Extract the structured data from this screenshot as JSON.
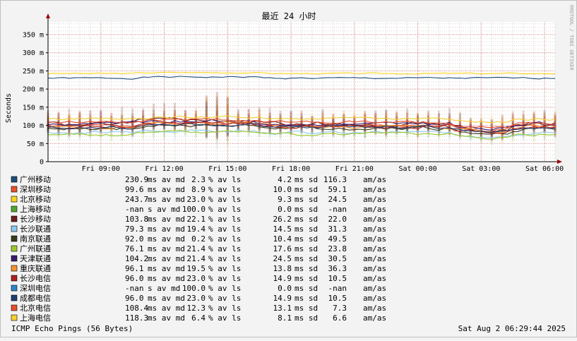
{
  "chart_data": {
    "type": "line",
    "title": "最近 24 小时",
    "ylabel": "Seconds",
    "watermark": "RRDTOOL / TOBI OETIKER",
    "footer_left": "ICMP Echo Pings (56 Bytes)",
    "footer_right": "Sat Aug  2 06:29:44 2025",
    "grid": true,
    "y_unit": "m",
    "ylim": [
      0,
      385
    ],
    "y_ticks": [
      {
        "value": 0,
        "label": "0"
      },
      {
        "value": 50,
        "label": "50 m"
      },
      {
        "value": 100,
        "label": "100 m"
      },
      {
        "value": 150,
        "label": "150 m"
      },
      {
        "value": 200,
        "label": "200 m"
      },
      {
        "value": 250,
        "label": "250 m"
      },
      {
        "value": 300,
        "label": "300 m"
      },
      {
        "value": 350,
        "label": "350 m"
      }
    ],
    "xlim": [
      "Fri 06:30",
      "Sat 06:30"
    ],
    "x_range_hours": [
      0,
      24
    ],
    "x_ticks": [
      {
        "hour": 2.5,
        "label": "Fri 09:00"
      },
      {
        "hour": 5.5,
        "label": "Fri 12:00"
      },
      {
        "hour": 8.5,
        "label": "Fri 15:00"
      },
      {
        "hour": 11.5,
        "label": "Fri 18:00"
      },
      {
        "hour": 14.5,
        "label": "Fri 21:00"
      },
      {
        "hour": 17.5,
        "label": "Sat 00:00"
      },
      {
        "hour": 20.5,
        "label": "Sat 03:00"
      },
      {
        "hour": 23.5,
        "label": "Sat 06:00"
      }
    ],
    "legend_placement": "bottom",
    "series": [
      {
        "name": "广州移动",
        "color": "#1f4e79",
        "avg": "230.9",
        "avg_unit": "ms",
        "loss": "2.3",
        "sd": "4.2",
        "sd_unit": "ms",
        "am": "116.3",
        "base": 230,
        "amp": 4,
        "seed": 1
      },
      {
        "name": "深圳移动",
        "color": "#e8522b",
        "avg": "99.6",
        "avg_unit": "ms",
        "loss": "8.9",
        "sd": "10.0",
        "sd_unit": "ms",
        "am": "59.1",
        "base": 100,
        "amp": 10,
        "seed": 2
      },
      {
        "name": "北京移动",
        "color": "#f7d51a",
        "avg": "243.7",
        "avg_unit": "ms",
        "loss": "23.0",
        "sd": "9.3",
        "sd_unit": "ms",
        "am": "24.5",
        "base": 243,
        "amp": 3,
        "seed": 3
      },
      {
        "name": "上海移动",
        "color": "#4ea72e",
        "avg": "-nan",
        "avg_unit": " s",
        "loss": "100.0",
        "sd": "0.0",
        "sd_unit": "ms",
        "am": "-nan"
      },
      {
        "name": "长沙移动",
        "color": "#6b1d1d",
        "avg": "103.8",
        "avg_unit": "ms",
        "loss": "22.1",
        "sd": "26.2",
        "sd_unit": "ms",
        "am": "22.0",
        "base": 104,
        "amp": 12,
        "seed": 5
      },
      {
        "name": "长沙联通",
        "color": "#8ccbf0",
        "avg": "79.3",
        "avg_unit": "ms",
        "loss": "19.4",
        "sd": "14.5",
        "sd_unit": "ms",
        "am": "31.3",
        "base": 80,
        "amp": 8,
        "seed": 6
      },
      {
        "name": "南京联通",
        "color": "#3b3b1f",
        "avg": "92.0",
        "avg_unit": "ms",
        "loss": "0.2",
        "sd": "10.4",
        "sd_unit": "ms",
        "am": "49.5",
        "base": 92,
        "amp": 9,
        "seed": 7
      },
      {
        "name": "广州联通",
        "color": "#9cc92b",
        "avg": "76.1",
        "avg_unit": "ms",
        "loss": "21.4",
        "sd": "17.6",
        "sd_unit": "ms",
        "am": "23.8",
        "base": 75,
        "amp": 8,
        "seed": 8
      },
      {
        "name": "天津联通",
        "color": "#3a1a6e",
        "avg": "104.2",
        "avg_unit": "ms",
        "loss": "21.4",
        "sd": "24.5",
        "sd_unit": "ms",
        "am": "30.5",
        "base": 104,
        "amp": 10,
        "seed": 9
      },
      {
        "name": "重庆联通",
        "color": "#f5922e",
        "avg": "96.1",
        "avg_unit": "ms",
        "loss": "19.5",
        "sd": "13.8",
        "sd_unit": "ms",
        "am": "36.3",
        "base": 97,
        "amp": 9,
        "seed": 10
      },
      {
        "name": "长沙电信",
        "color": "#b01e1e",
        "avg": "96.0",
        "avg_unit": "ms",
        "loss": "23.0",
        "sd": "14.9",
        "sd_unit": "ms",
        "am": "10.5",
        "base": 96,
        "amp": 10,
        "seed": 11
      },
      {
        "name": "深圳电信",
        "color": "#2d86c8",
        "avg": "-nan",
        "avg_unit": " s",
        "loss": "100.0",
        "sd": "0.0",
        "sd_unit": "ms",
        "am": "-nan"
      },
      {
        "name": "成都电信",
        "color": "#1f3f74",
        "avg": "96.0",
        "avg_unit": "ms",
        "loss": "23.0",
        "sd": "14.9",
        "sd_unit": "ms",
        "am": "10.5",
        "base": 95,
        "amp": 8,
        "seed": 13
      },
      {
        "name": "北京电信",
        "color": "#e84f2a",
        "avg": "108.4",
        "avg_unit": "ms",
        "loss": "12.3",
        "sd": "13.1",
        "sd_unit": "ms",
        "am": "7.3",
        "base": 108,
        "amp": 8,
        "seed": 14
      },
      {
        "name": "上海电信",
        "color": "#f5cf33",
        "avg": "118.3",
        "avg_unit": "ms",
        "loss": "6.4",
        "sd": "8.1",
        "sd_unit": "ms",
        "am": "6.6",
        "base": 118,
        "amp": 6,
        "seed": 15
      }
    ],
    "legend_labels": {
      "av_md": "av md",
      "av_ls": "% av ls",
      "sd": "sd",
      "am_as": "am/as"
    }
  }
}
